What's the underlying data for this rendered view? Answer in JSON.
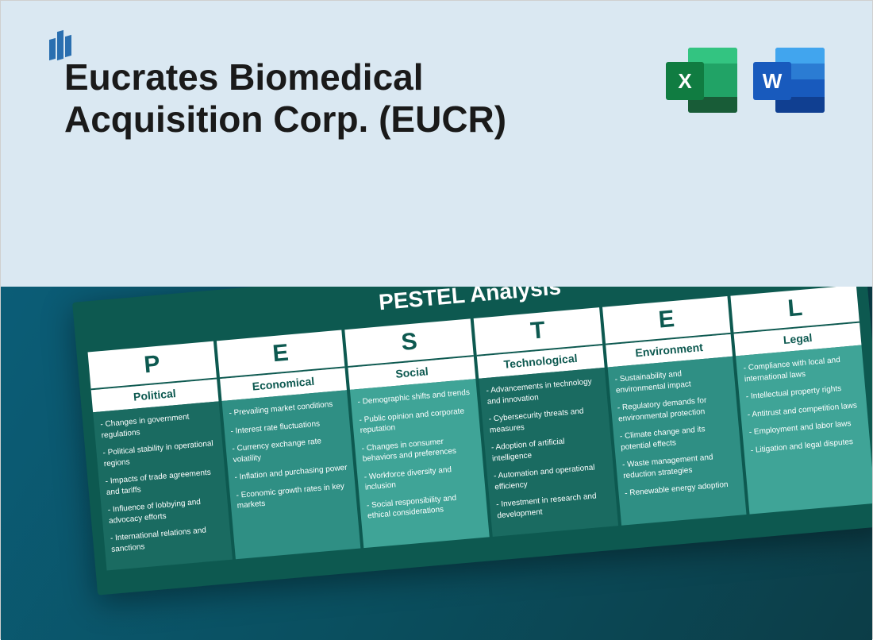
{
  "header": {
    "title": "Eucrates Biomedical Acquisition Corp. (EUCR)",
    "excel_letter": "X",
    "word_letter": "W"
  },
  "pestel": {
    "title": "PESTEL Analysis",
    "columns": [
      {
        "letter": "P",
        "label": "Political",
        "items": [
          "- Changes in government regulations",
          "- Political stability in operational regions",
          "- Impacts of trade agreements and tariffs",
          "- Influence of lobbying and advocacy efforts",
          "- International relations and sanctions"
        ]
      },
      {
        "letter": "E",
        "label": "Economical",
        "items": [
          "- Prevailing market conditions",
          "- Interest rate fluctuations",
          "- Currency exchange rate volatility",
          "- Inflation and purchasing power",
          "- Economic growth rates in key markets"
        ]
      },
      {
        "letter": "S",
        "label": "Social",
        "items": [
          "- Demographic shifts and trends",
          "- Public opinion and corporate reputation",
          "- Changes in consumer behaviors and preferences",
          "- Workforce diversity and inclusion",
          "- Social responsibility and ethical considerations"
        ]
      },
      {
        "letter": "T",
        "label": "Technological",
        "items": [
          "- Advancements in technology and innovation",
          "- Cybersecurity threats and measures",
          "- Adoption of artificial intelligence",
          "- Automation and operational efficiency",
          "- Investment in research and development"
        ]
      },
      {
        "letter": "E",
        "label": "Environment",
        "items": [
          "- Sustainability and environmental impact",
          "- Regulatory demands for environmental protection",
          "- Climate change and its potential effects",
          "- Waste management and reduction strategies",
          "- Renewable energy adoption"
        ]
      },
      {
        "letter": "L",
        "label": "Legal",
        "items": [
          "- Compliance with local and international laws",
          "- Intellectual property rights",
          "- Antitrust and competition laws",
          "- Employment and labor laws",
          "- Litigation and legal disputes"
        ]
      }
    ]
  },
  "colors": {
    "top_bg": "#dae8f2",
    "bottom_gradient_from": "#0b5d77",
    "bottom_gradient_to": "#0c3d47",
    "card_bg": "#0d5950",
    "col_header_bg": "#ffffff",
    "col_header_text": "#0d5950",
    "body_text": "#ffffff",
    "body_shades": [
      "#1a6b61",
      "#2f8f84",
      "#3fa497",
      "#1a6b61",
      "#2f8f84",
      "#3fa497"
    ],
    "logo_color": "#2a6fb0",
    "excel_primary": "#107c41",
    "word_primary": "#185abd"
  }
}
